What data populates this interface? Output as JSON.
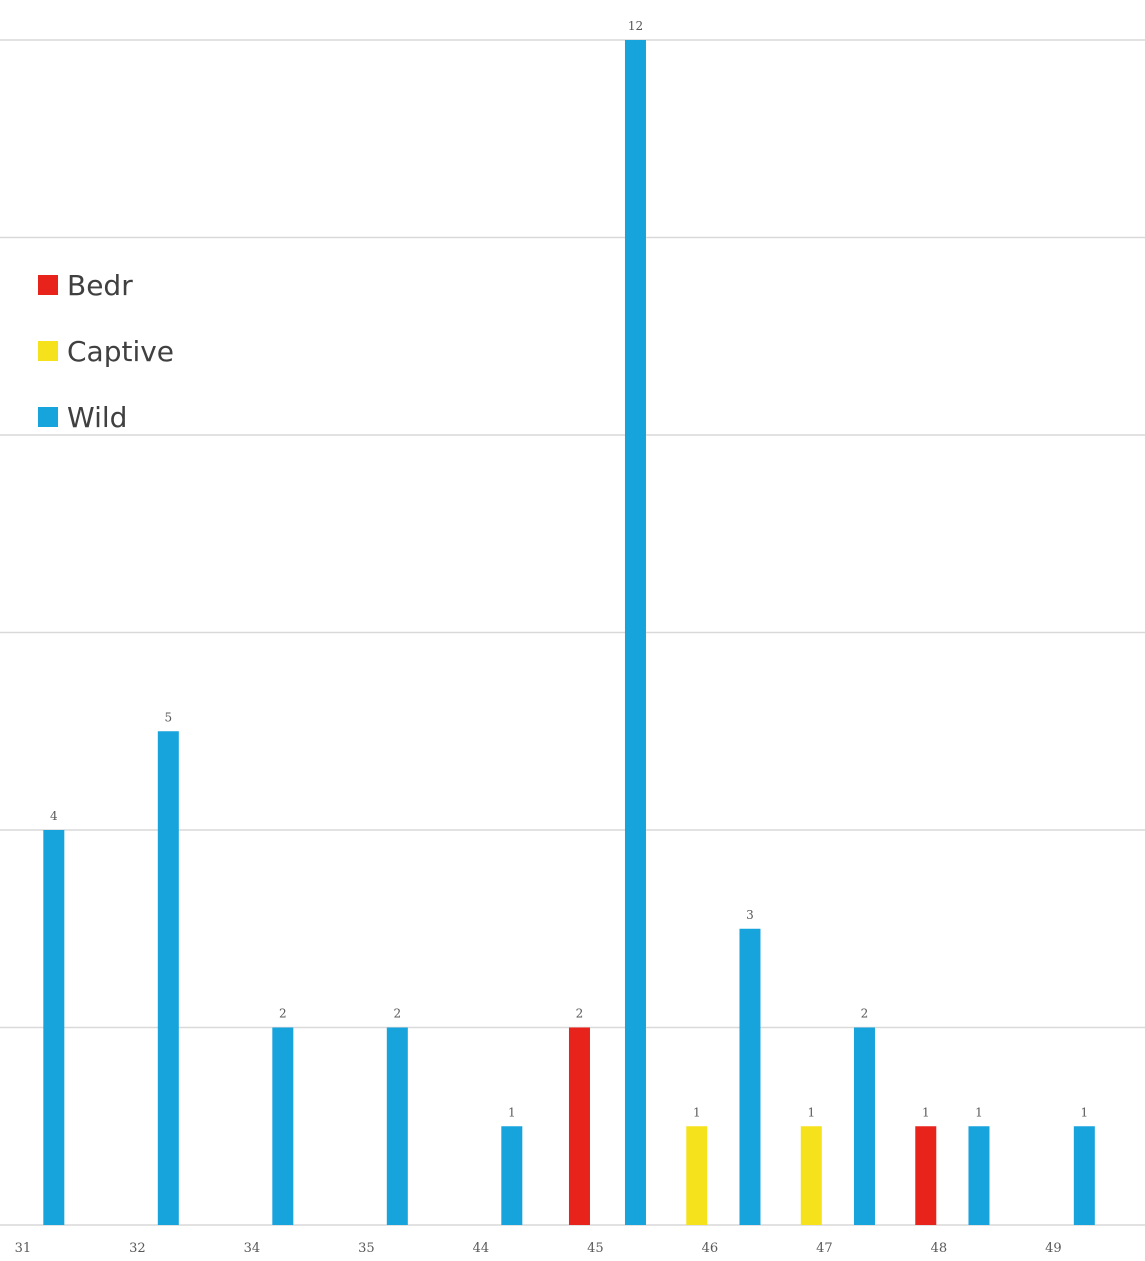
{
  "chart_data": {
    "type": "bar",
    "categories": [
      "31",
      "32",
      "34",
      "35",
      "44",
      "45",
      "46",
      "47",
      "48",
      "49"
    ],
    "series": [
      {
        "name": "Bedr",
        "color": "#e8231b",
        "values": [
          null,
          null,
          null,
          null,
          null,
          2,
          null,
          null,
          1,
          null
        ]
      },
      {
        "name": "Captive",
        "color": "#f5e21c",
        "values": [
          null,
          null,
          null,
          null,
          null,
          null,
          1,
          1,
          null,
          null
        ]
      },
      {
        "name": "Wild",
        "color": "#17a3dc",
        "values": [
          4,
          5,
          2,
          2,
          1,
          12,
          3,
          2,
          1,
          1
        ]
      }
    ],
    "title": "",
    "xlabel": "",
    "ylabel": "",
    "ylim": [
      0,
      12
    ],
    "gridlines": [
      0,
      2,
      4,
      6,
      8,
      10,
      12
    ],
    "grid": true,
    "data_labels": true,
    "legend_placement": "left"
  }
}
